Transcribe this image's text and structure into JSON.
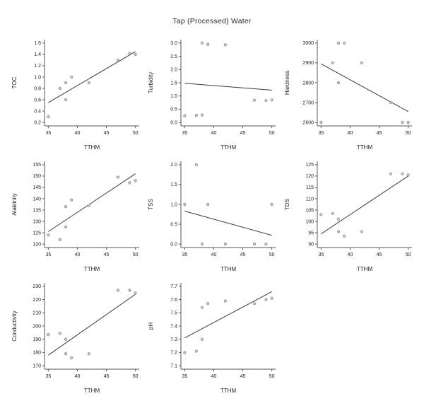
{
  "figure": {
    "title": "Tap (Processed) Water"
  },
  "colors": {
    "axis": "#555555",
    "tick_text": "#222222",
    "trend_line": "#3a3a3a",
    "point_fill": "#cccccc",
    "point_stroke": "#8a8a8a",
    "background": "#ffffff"
  },
  "chart_data": [
    {
      "type": "scatter",
      "xlabel": "TTHM",
      "ylabel": "TOC",
      "xlim": [
        35,
        50
      ],
      "ylim": [
        0.2,
        1.6
      ],
      "xticks": [
        "35",
        "40",
        "45",
        "50"
      ],
      "yticks": [
        "0.2",
        "0.4",
        "0.6",
        "0.8",
        "1.0",
        "1.2",
        "1.4",
        "1.6"
      ],
      "x": [
        35,
        37,
        38,
        38,
        39,
        42,
        47,
        49,
        50
      ],
      "y": [
        0.3,
        0.8,
        0.9,
        0.6,
        1.0,
        0.9,
        1.3,
        1.42,
        1.4
      ],
      "trend": {
        "x": [
          35,
          50
        ],
        "y": [
          0.55,
          1.45
        ]
      }
    },
    {
      "type": "scatter",
      "xlabel": "TTHM",
      "ylabel": "Turbidity",
      "xlim": [
        35,
        50
      ],
      "ylim": [
        0.0,
        3.0
      ],
      "xticks": [
        "35",
        "40",
        "45",
        "50"
      ],
      "yticks": [
        "0.0",
        "0.5",
        "1.0",
        "1.5",
        "2.0",
        "2.5",
        "3.0"
      ],
      "x": [
        35,
        37,
        38,
        38,
        39,
        42,
        47,
        49,
        50
      ],
      "y": [
        0.25,
        0.27,
        3.0,
        0.28,
        2.95,
        2.93,
        0.84,
        0.83,
        0.85
      ],
      "trend": {
        "x": [
          35,
          50
        ],
        "y": [
          1.48,
          1.22
        ]
      }
    },
    {
      "type": "scatter",
      "xlabel": "TTHM",
      "ylabel": "Hardness",
      "xlim": [
        35,
        50
      ],
      "ylim": [
        2600,
        3000
      ],
      "xticks": [
        "35",
        "40",
        "45",
        "50"
      ],
      "yticks": [
        "2600",
        "2700",
        "2800",
        "2900",
        "3000"
      ],
      "x": [
        35,
        37,
        38,
        38,
        39,
        42,
        47,
        49,
        50
      ],
      "y": [
        2600,
        2900,
        3000,
        2800,
        3000,
        2900,
        2700,
        2600,
        2600
      ],
      "trend": {
        "x": [
          35,
          50
        ],
        "y": [
          2895,
          2655
        ]
      }
    },
    {
      "type": "scatter",
      "xlabel": "TTHM",
      "ylabel": "Alaklinity",
      "xlim": [
        35,
        50
      ],
      "ylim": [
        120,
        155
      ],
      "xticks": [
        "35",
        "40",
        "45",
        "50"
      ],
      "yticks": [
        "120",
        "125",
        "130",
        "135",
        "140",
        "145",
        "150",
        "155"
      ],
      "x": [
        35,
        37,
        38,
        38,
        39,
        42,
        47,
        49,
        50
      ],
      "y": [
        124,
        122,
        136.5,
        127.5,
        139.5,
        137,
        149.5,
        147,
        148
      ],
      "trend": {
        "x": [
          35,
          50
        ],
        "y": [
          125.5,
          151
        ]
      }
    },
    {
      "type": "scatter",
      "xlabel": "TTHM",
      "ylabel": "TSS",
      "xlim": [
        35,
        50
      ],
      "ylim": [
        0.0,
        2.0
      ],
      "xticks": [
        "35",
        "40",
        "45",
        "50"
      ],
      "yticks": [
        "0.0",
        "0.5",
        "1.0",
        "1.5",
        "2.0"
      ],
      "x": [
        35,
        37,
        38,
        38,
        39,
        42,
        47,
        49,
        50
      ],
      "y": [
        1.0,
        2.0,
        0.0,
        0.0,
        1.0,
        0.0,
        0.0,
        0.0,
        1.0
      ],
      "trend": {
        "x": [
          35,
          50
        ],
        "y": [
          0.83,
          0.22
        ]
      }
    },
    {
      "type": "scatter",
      "xlabel": "TTHM",
      "ylabel": "TDS",
      "xlim": [
        35,
        50
      ],
      "ylim": [
        90,
        125
      ],
      "xticks": [
        "35",
        "40",
        "45",
        "50"
      ],
      "yticks": [
        "90",
        "95",
        "100",
        "105",
        "110",
        "115",
        "120",
        "125"
      ],
      "x": [
        35,
        37,
        38,
        38,
        39,
        42,
        47,
        49,
        50
      ],
      "y": [
        103,
        103.5,
        101,
        95.5,
        93.5,
        95.5,
        121,
        121,
        120.5
      ],
      "trend": {
        "x": [
          35,
          50
        ],
        "y": [
          94.5,
          120
        ]
      }
    },
    {
      "type": "scatter",
      "xlabel": "TTHM",
      "ylabel": "Conductivity",
      "xlim": [
        35,
        50
      ],
      "ylim": [
        170,
        230
      ],
      "xticks": [
        "35",
        "40",
        "45",
        "50"
      ],
      "yticks": [
        "170",
        "180",
        "190",
        "200",
        "210",
        "220",
        "230"
      ],
      "x": [
        35,
        37,
        38,
        38,
        39,
        42,
        47,
        49,
        50
      ],
      "y": [
        193.5,
        194.5,
        190,
        179,
        176,
        179,
        227,
        227,
        225
      ],
      "trend": {
        "x": [
          35,
          50
        ],
        "y": [
          178,
          224
        ]
      }
    },
    {
      "type": "scatter",
      "xlabel": "TTHM",
      "ylabel": "pH",
      "xlim": [
        35,
        50
      ],
      "ylim": [
        7.1,
        7.7
      ],
      "xticks": [
        "35",
        "40",
        "45",
        "50"
      ],
      "yticks": [
        "7.1",
        "7.2",
        "7.3",
        "7.4",
        "7.5",
        "7.6",
        "7.7"
      ],
      "x": [
        35,
        37,
        38,
        38,
        39,
        42,
        47,
        49,
        50
      ],
      "y": [
        7.2,
        7.21,
        7.54,
        7.3,
        7.57,
        7.59,
        7.57,
        7.6,
        7.61
      ],
      "trend": {
        "x": [
          35,
          50
        ],
        "y": [
          7.31,
          7.66
        ]
      }
    }
  ]
}
